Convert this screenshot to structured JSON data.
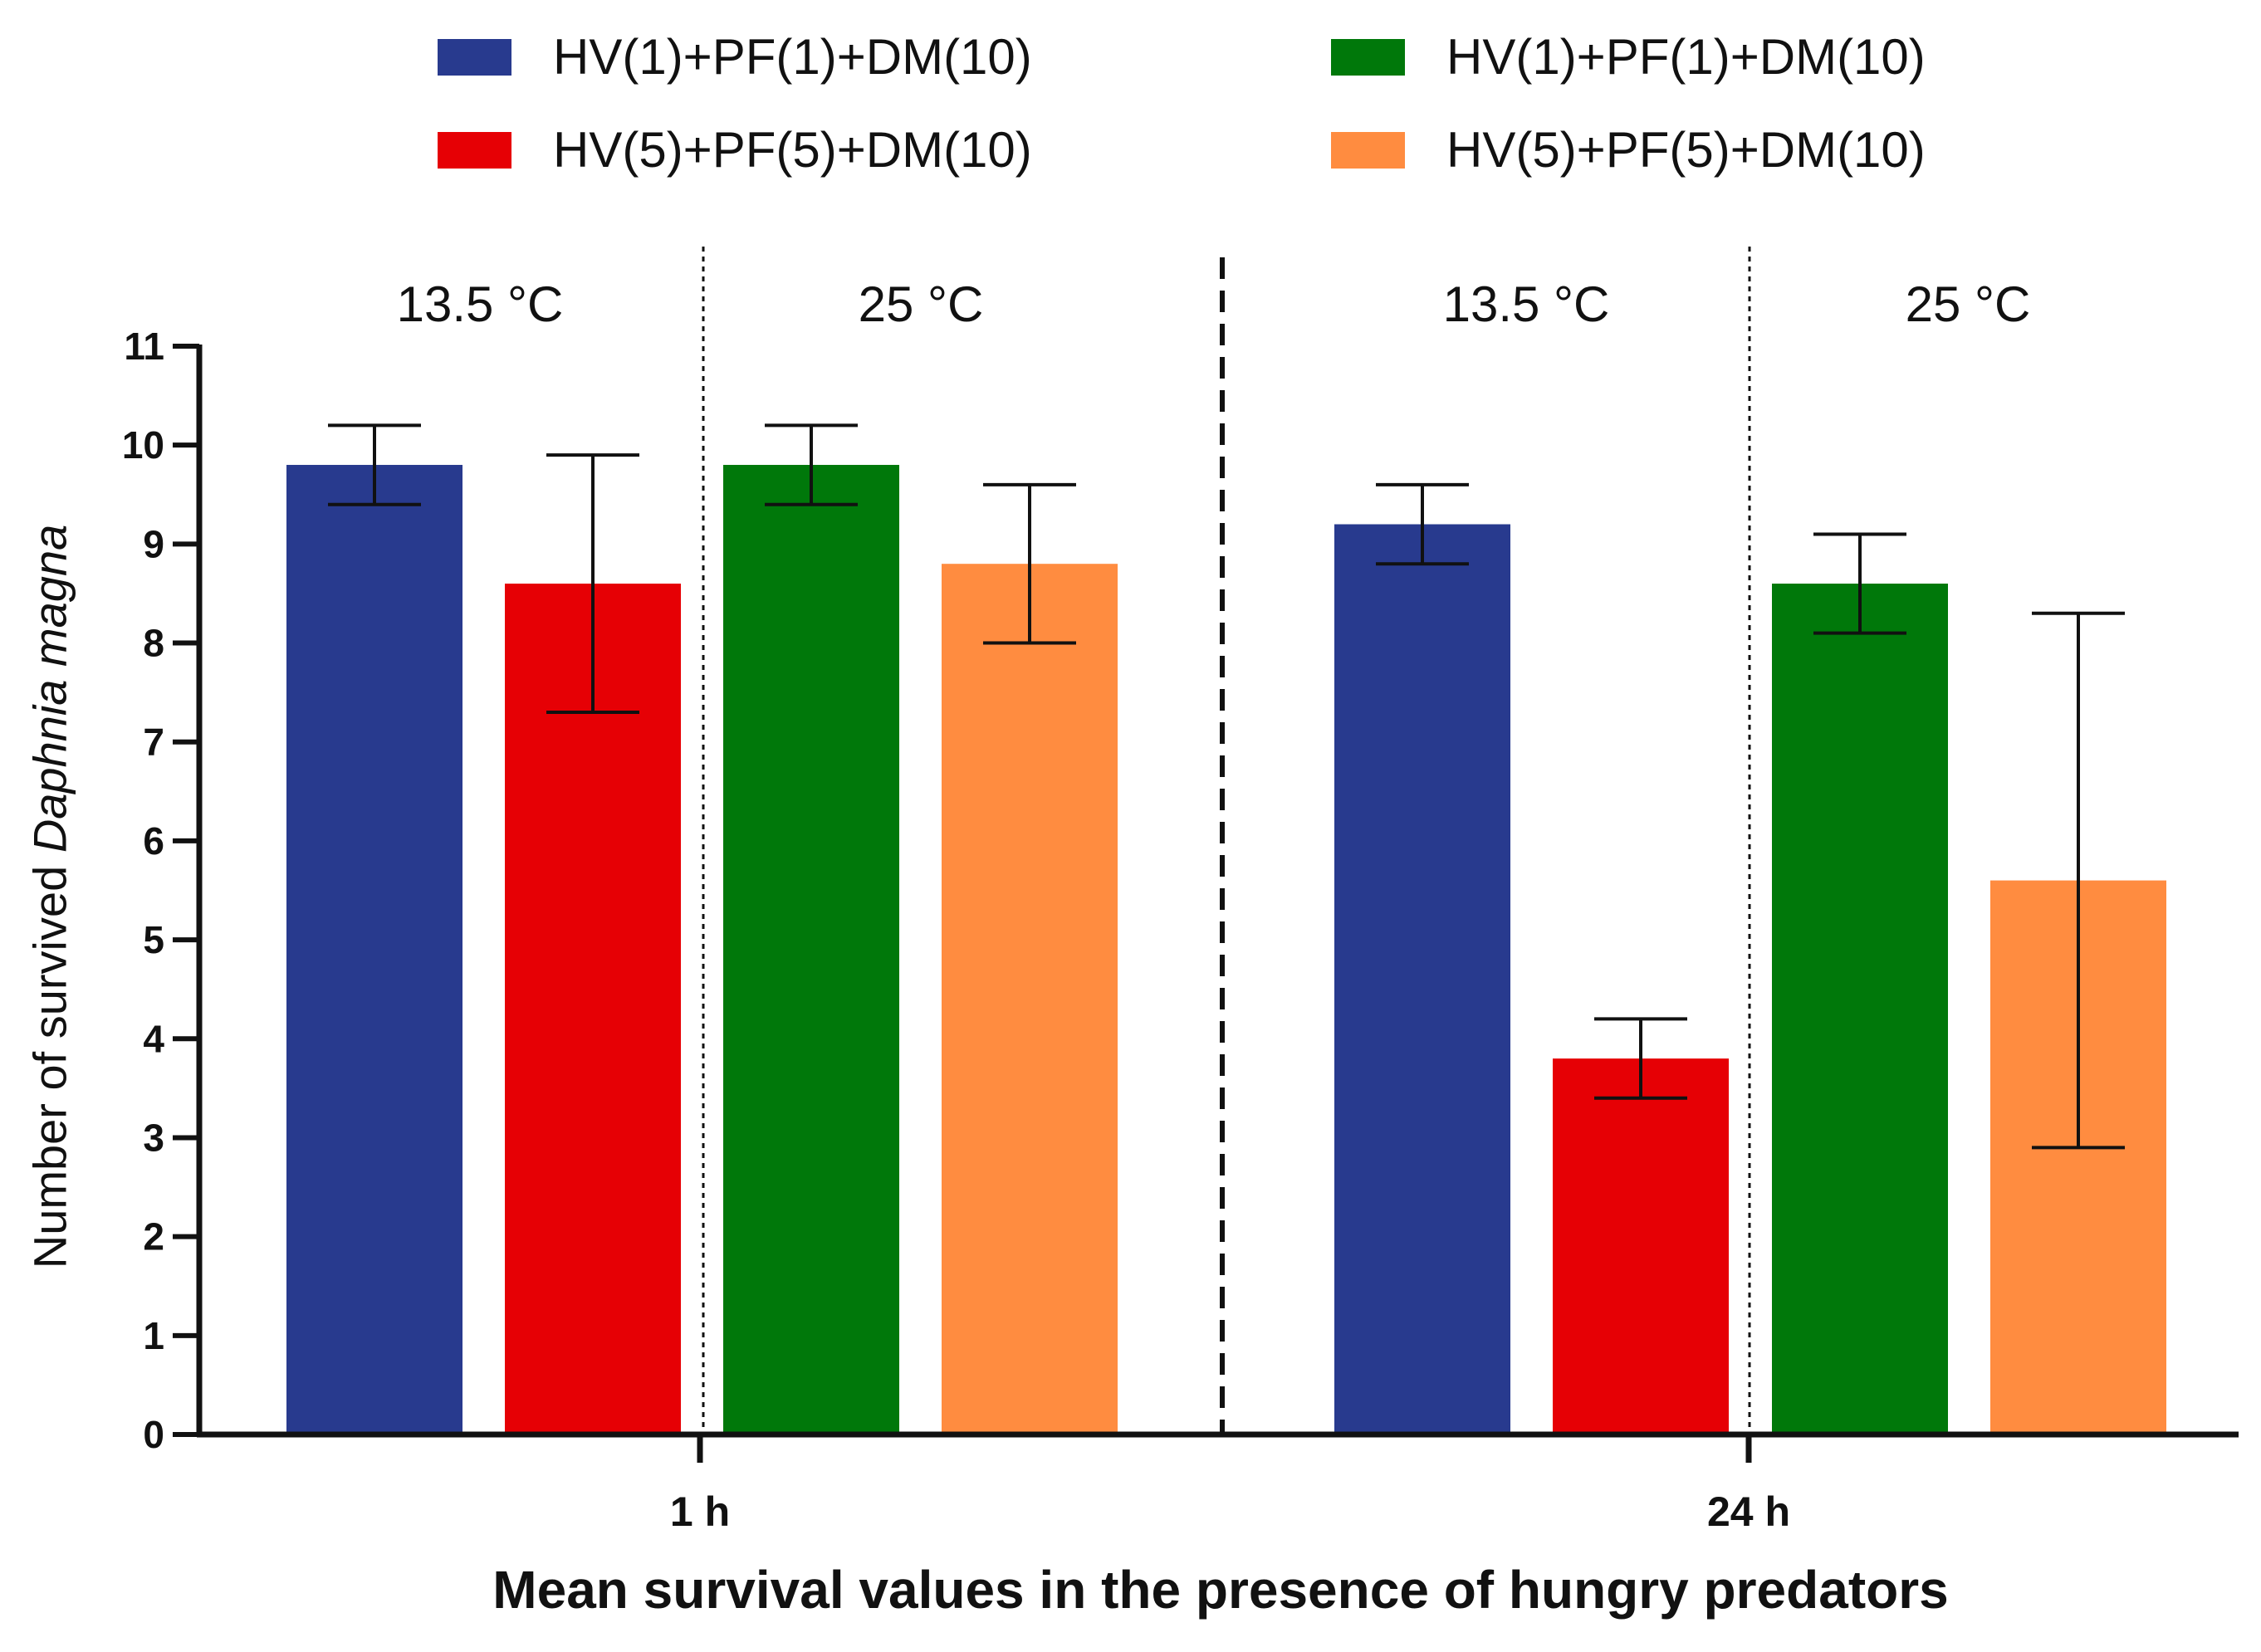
{
  "chart_data": {
    "type": "bar",
    "title": "",
    "xlabel": "Mean survival values in the presence of hungry predators",
    "ylabel_prefix": "Number of survived ",
    "ylabel_italic": "Daphnia magna",
    "ylim": [
      0,
      11
    ],
    "yticks": [
      "0",
      "1",
      "2",
      "3",
      "4",
      "5",
      "6",
      "7",
      "8",
      "9",
      "10",
      "11"
    ],
    "categories": [
      "1 h",
      "24 h"
    ],
    "temperature_labels": [
      "13.5 °C",
      "25 °C",
      "13.5 °C",
      "25 °C"
    ],
    "legend": [
      {
        "label": "HV(1)+PF(1)+DM(10)",
        "color": "#283A8E"
      },
      {
        "label": "HV(1)+PF(1)+DM(10)",
        "color": "#00780A"
      },
      {
        "label": "HV(5)+PF(5)+DM(10)",
        "color": "#E60005"
      },
      {
        "label": "HV(5)+PF(5)+DM(10)",
        "color": "#FF8C40"
      }
    ],
    "bars": [
      {
        "group": "1 h",
        "temp": "13.5 °C",
        "series": "HV(1)+PF(1)+DM(10)",
        "value": 9.8,
        "err_low": 9.4,
        "err_high": 10.2,
        "color": "#283A8E"
      },
      {
        "group": "1 h",
        "temp": "13.5 °C",
        "series": "HV(5)+PF(5)+DM(10)",
        "value": 8.6,
        "err_low": 7.3,
        "err_high": 9.9,
        "color": "#E60005"
      },
      {
        "group": "1 h",
        "temp": "25 °C",
        "series": "HV(1)+PF(1)+DM(10)",
        "value": 9.8,
        "err_low": 9.4,
        "err_high": 10.2,
        "color": "#00780A"
      },
      {
        "group": "1 h",
        "temp": "25 °C",
        "series": "HV(5)+PF(5)+DM(10)",
        "value": 8.8,
        "err_low": 8.0,
        "err_high": 9.6,
        "color": "#FF8C40"
      },
      {
        "group": "24 h",
        "temp": "13.5 °C",
        "series": "HV(1)+PF(1)+DM(10)",
        "value": 9.2,
        "err_low": 8.8,
        "err_high": 9.6,
        "color": "#283A8E"
      },
      {
        "group": "24 h",
        "temp": "13.5 °C",
        "series": "HV(5)+PF(5)+DM(10)",
        "value": 3.8,
        "err_low": 3.4,
        "err_high": 4.2,
        "color": "#E60005"
      },
      {
        "group": "24 h",
        "temp": "25 °C",
        "series": "HV(1)+PF(1)+DM(10)",
        "value": 8.6,
        "err_low": 8.1,
        "err_high": 9.1,
        "color": "#00780A"
      },
      {
        "group": "24 h",
        "temp": "25 °C",
        "series": "HV(5)+PF(5)+DM(10)",
        "value": 5.6,
        "err_low": 2.9,
        "err_high": 8.3,
        "color": "#FF8C40"
      }
    ]
  }
}
